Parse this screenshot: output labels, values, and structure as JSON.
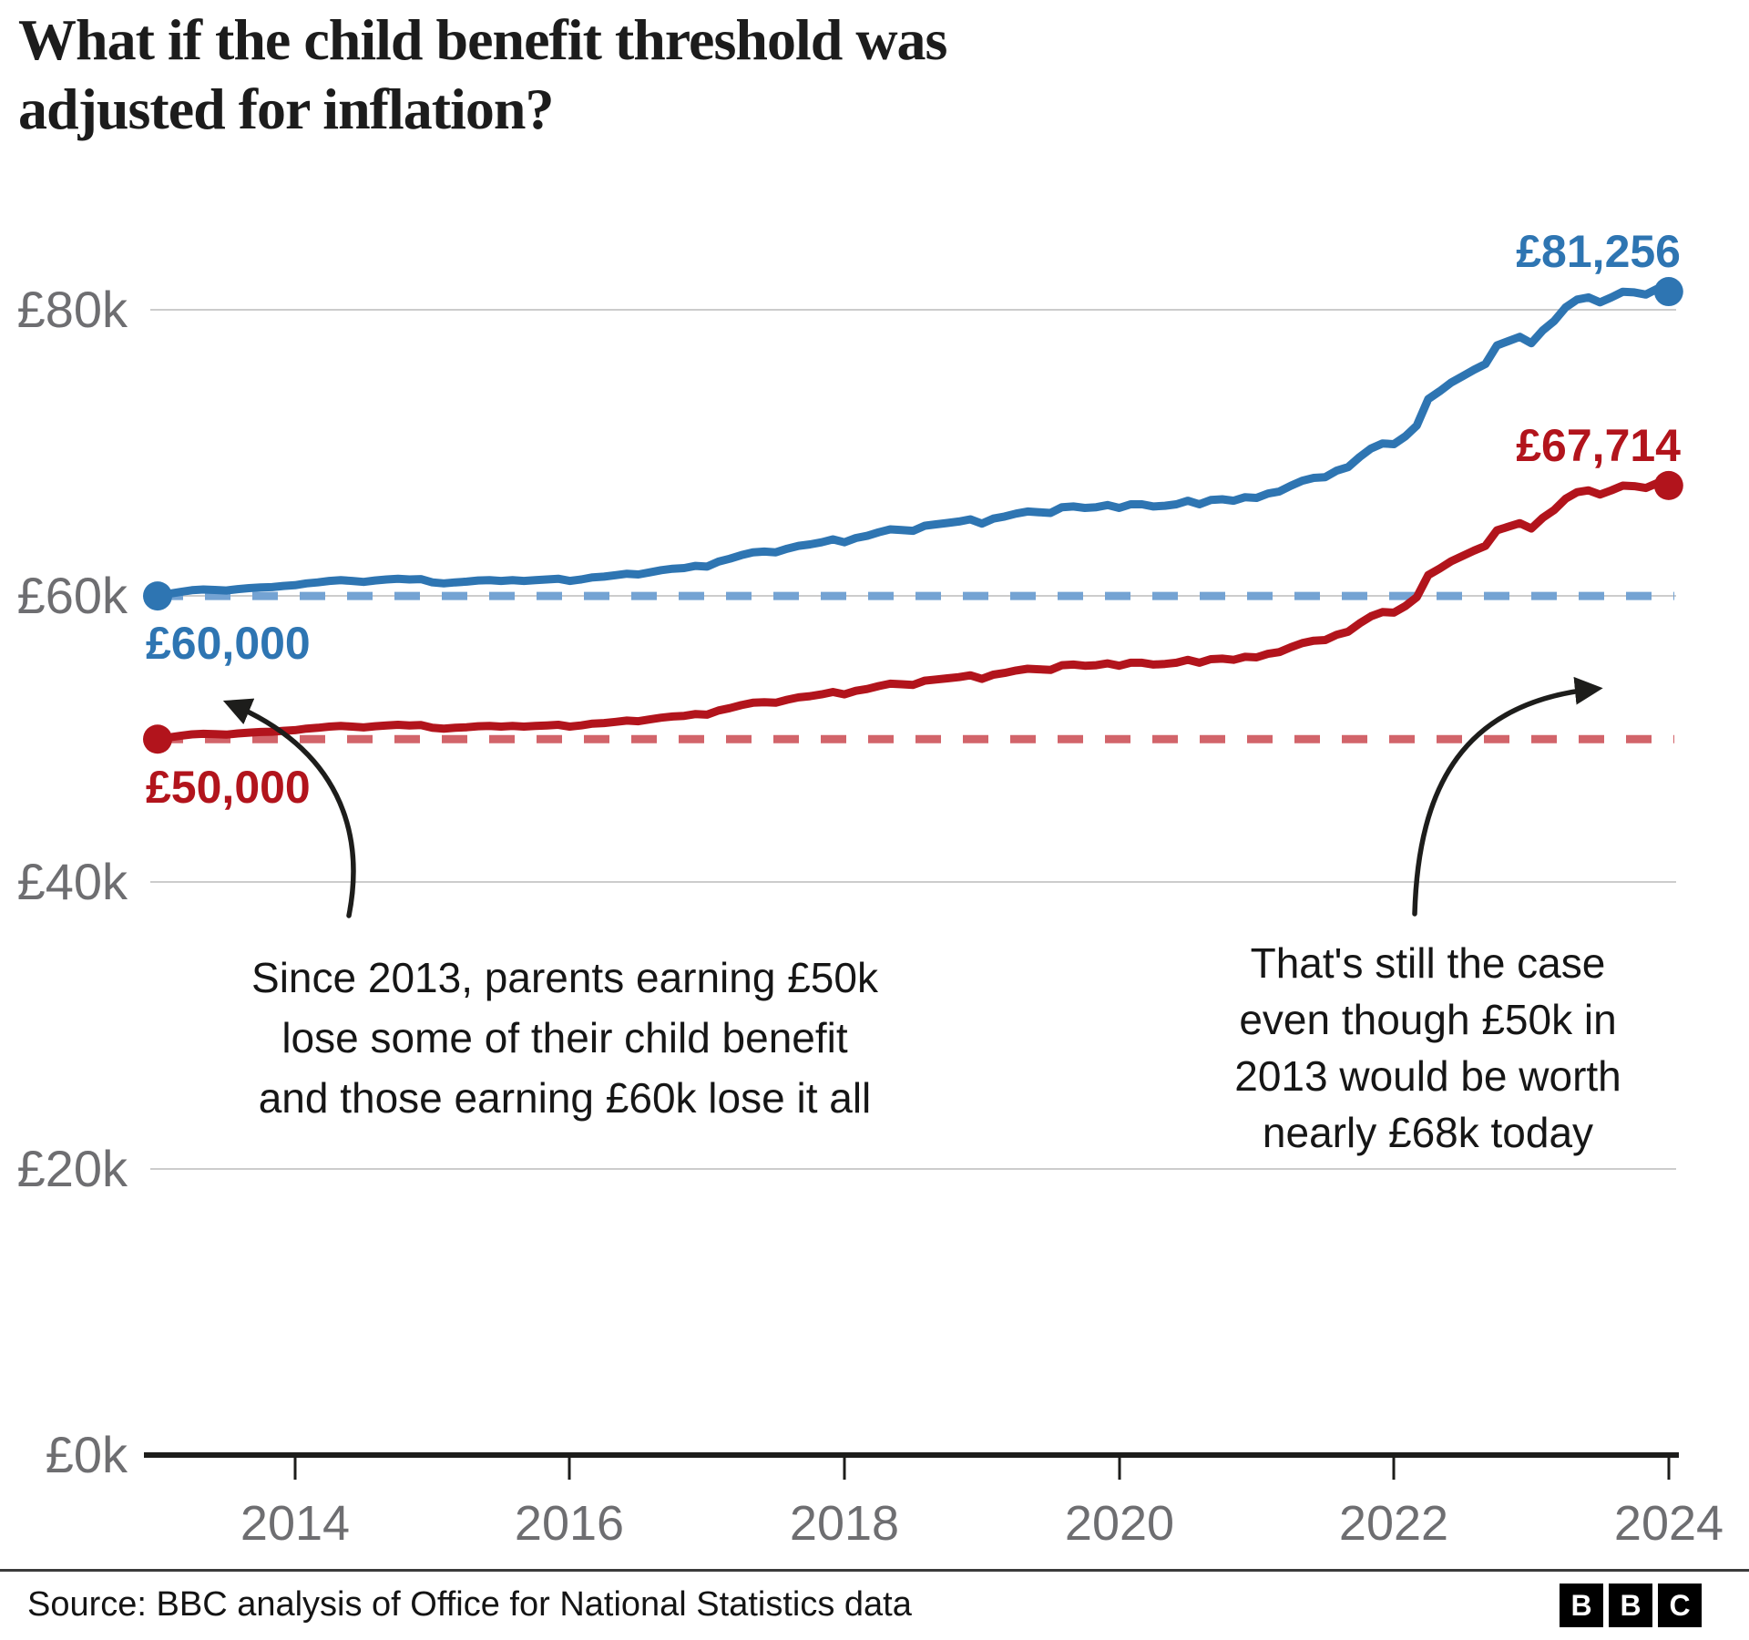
{
  "title": {
    "line1": "What if the child benefit threshold was",
    "line2": "adjusted for inflation?"
  },
  "yaxis": {
    "labels": [
      "£80k",
      "£60k",
      "£40k",
      "£20k",
      "£0k"
    ]
  },
  "xaxis": {
    "labels": [
      "2014",
      "2016",
      "2018",
      "2020",
      "2022",
      "2024"
    ]
  },
  "series_labels": {
    "blue_start": "£60,000",
    "red_start": "£50,000",
    "blue_end": "£81,256",
    "red_end": "£67,714"
  },
  "annotations": {
    "left": {
      "lines": [
        "Since 2013, parents earning £50k",
        "lose some of their child benefit",
        "and those earning £60k lose it all"
      ]
    },
    "right": {
      "lines": [
        "That's still the case",
        "even though £50k in",
        "2013 would be worth",
        "nearly £68k today"
      ]
    }
  },
  "footer": {
    "source": "Source: BBC analysis of Office for National Statistics data",
    "logo_letters": [
      "B",
      "B",
      "C"
    ]
  },
  "colors": {
    "blue": "#2e75b2",
    "blue_dash": "#74a3d3",
    "red": "#b2141c",
    "red_dash": "#d2646a",
    "grid": "#cccccc",
    "axis": "#1d1d1b",
    "tick_label": "#6e6e71",
    "text": "#161616"
  },
  "chart_data": {
    "type": "line",
    "title": "What if the child benefit threshold was adjusted for inflation?",
    "xlabel": "",
    "ylabel": "",
    "x": {
      "start_year": 2013,
      "interval_months": 1,
      "points": 133,
      "end_year": 2024
    },
    "xticks": [
      2014,
      2016,
      2018,
      2020,
      2022,
      2024
    ],
    "yticks": [
      0,
      20000,
      40000,
      60000,
      80000
    ],
    "ylim": [
      0,
      88500
    ],
    "grid": true,
    "legend_position": "none",
    "reference_lines": [
      {
        "label": "£60,000",
        "value": 60000,
        "style": "dashed"
      },
      {
        "label": "£50,000",
        "value": 50000,
        "style": "dashed"
      }
    ],
    "end_labels": {
      "blue": "£81,256",
      "red": "£67,714"
    },
    "series": [
      {
        "name": "£60,000 threshold adjusted for inflation",
        "color_key": "blue",
        "values": [
          60000,
          60150,
          60280,
          60400,
          60450,
          60420,
          60380,
          60480,
          60550,
          60600,
          60620,
          60700,
          60750,
          60880,
          60950,
          61050,
          61100,
          61050,
          60980,
          61080,
          61150,
          61200,
          61150,
          61180,
          60950,
          60880,
          60950,
          61000,
          61080,
          61100,
          61050,
          61100,
          61050,
          61100,
          61150,
          61200,
          61050,
          61150,
          61300,
          61350,
          61450,
          61550,
          61500,
          61650,
          61800,
          61900,
          61950,
          62100,
          62050,
          62400,
          62600,
          62850,
          63050,
          63100,
          63050,
          63300,
          63500,
          63600,
          63750,
          63950,
          63750,
          64050,
          64200,
          64450,
          64650,
          64600,
          64550,
          64900,
          65000,
          65100,
          65200,
          65350,
          65050,
          65400,
          65550,
          65750,
          65900,
          65850,
          65800,
          66200,
          66250,
          66150,
          66200,
          66350,
          66150,
          66400,
          66400,
          66250,
          66300,
          66400,
          66650,
          66400,
          66700,
          66750,
          66650,
          66900,
          66850,
          67150,
          67300,
          67700,
          68050,
          68250,
          68300,
          68750,
          69000,
          69700,
          70300,
          70650,
          70600,
          71150,
          71900,
          73750,
          74300,
          74900,
          75350,
          75800,
          76200,
          77500,
          77800,
          78100,
          77650,
          78550,
          79200,
          80150,
          80700,
          80850,
          80500,
          80850,
          81250,
          81200,
          81050,
          81450,
          81256
        ]
      },
      {
        "name": "£50,000 threshold adjusted for inflation",
        "color_key": "red",
        "values": [
          50000,
          50125,
          50233,
          50333,
          50375,
          50350,
          50317,
          50400,
          50458,
          50500,
          50517,
          50583,
          50625,
          50733,
          50792,
          50875,
          50917,
          50875,
          50817,
          50900,
          50958,
          51000,
          50958,
          50983,
          50792,
          50733,
          50792,
          50833,
          50900,
          50917,
          50875,
          50917,
          50875,
          50917,
          50958,
          51000,
          50875,
          50958,
          51083,
          51125,
          51208,
          51292,
          51250,
          51375,
          51500,
          51583,
          51625,
          51750,
          51708,
          52000,
          52167,
          52375,
          52542,
          52583,
          52542,
          52750,
          52917,
          53000,
          53125,
          53292,
          53125,
          53375,
          53500,
          53708,
          53875,
          53833,
          53792,
          54083,
          54167,
          54250,
          54333,
          54458,
          54208,
          54500,
          54625,
          54792,
          54917,
          54875,
          54833,
          55167,
          55208,
          55125,
          55167,
          55292,
          55125,
          55333,
          55333,
          55208,
          55250,
          55333,
          55542,
          55333,
          55583,
          55625,
          55542,
          55750,
          55708,
          55958,
          56083,
          56417,
          56708,
          56875,
          56917,
          57292,
          57500,
          58083,
          58583,
          58875,
          58833,
          59292,
          59917,
          61458,
          61917,
          62417,
          62792,
          63167,
          63500,
          64583,
          64833,
          65083,
          64708,
          65458,
          66000,
          66792,
          67250,
          67375,
          67083,
          67375,
          67708,
          67667,
          67542,
          67875,
          67714
        ]
      }
    ]
  }
}
